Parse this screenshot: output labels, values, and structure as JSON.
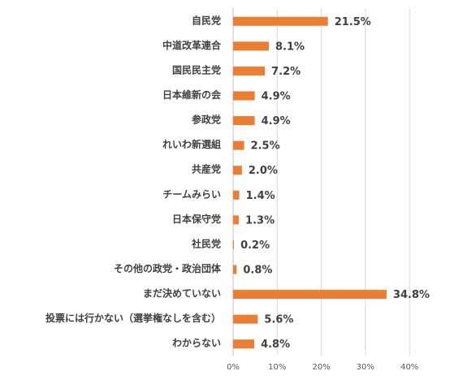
{
  "chart_data": {
    "type": "bar",
    "orientation": "horizontal",
    "categories": [
      "自民党",
      "中道改革連合",
      "国民民主党",
      "日本維新の会",
      "参政党",
      "れいわ新選組",
      "共産党",
      "チームみらい",
      "日本保守党",
      "社民党",
      "その他の政党・政治団体",
      "まだ決めていない",
      "投票には行かない（選挙権なしを含む）",
      "わからない"
    ],
    "values": [
      21.5,
      8.1,
      7.2,
      4.9,
      4.9,
      2.5,
      2.0,
      1.4,
      1.3,
      0.2,
      0.8,
      34.8,
      5.6,
      4.8
    ],
    "data_labels": [
      "21.5%",
      "8.1%",
      "7.2%",
      "4.9%",
      "4.9%",
      "2.5%",
      "2.0%",
      "1.4%",
      "1.3%",
      "0.2%",
      "0.8%",
      "34.8%",
      "5.6%",
      "4.8%"
    ],
    "x_ticks": [
      0,
      10,
      20,
      30,
      40
    ],
    "x_tick_labels": [
      "0%",
      "10%",
      "20%",
      "30%",
      "40%"
    ],
    "xlim": [
      0,
      40
    ],
    "grid": true,
    "legend": "none",
    "bar_color": "#ED7D31",
    "title": "",
    "xlabel": "",
    "ylabel": ""
  }
}
